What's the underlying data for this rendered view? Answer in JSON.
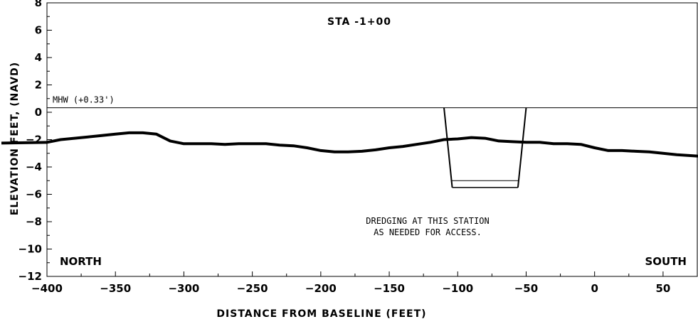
{
  "chart_data": {
    "type": "line",
    "title": "STA -1+00",
    "xlabel": "DISTANCE FROM BASELINE (FEET)",
    "ylabel": "ELEVATION FEET, (NAVD)",
    "xlim": [
      -400,
      75
    ],
    "ylim": [
      -12,
      8
    ],
    "x_ticks": [
      -400,
      -350,
      -300,
      -250,
      -200,
      -150,
      -100,
      -50,
      0,
      50
    ],
    "x_tick_labels": [
      "-400",
      "-350",
      "-300",
      "-250",
      "-200",
      "-150",
      "-100",
      "-50",
      "0",
      "50"
    ],
    "y_ticks": [
      -12,
      -10,
      -8,
      -6,
      -4,
      -2,
      0,
      2,
      4,
      6,
      8
    ],
    "y_tick_labels": [
      "-12",
      "-10",
      "-8",
      "-6",
      "-4",
      "-2",
      "0",
      "2",
      "4",
      "6",
      "8"
    ],
    "grid": false,
    "mhw": {
      "label": "MHW (+0.33')",
      "value": 0.33
    },
    "series": [
      {
        "x": [
          -400,
          -390,
          -380,
          -370,
          -360,
          -350,
          -340,
          -330,
          -320,
          -310,
          -300,
          -290,
          -280,
          -270,
          -260,
          -250,
          -240,
          -230,
          -220,
          -210,
          -200,
          -190,
          -180,
          -170,
          -160,
          -150,
          -140,
          -130,
          -120,
          -110,
          -100,
          -90,
          -80,
          -70,
          -60,
          -50,
          -40,
          -30,
          -20,
          -10,
          0,
          10,
          20,
          30,
          40,
          50,
          60,
          75
        ],
        "y": [
          -2.2,
          -2.0,
          -1.9,
          -1.8,
          -1.7,
          -1.6,
          -1.5,
          -1.5,
          -1.6,
          -2.1,
          -2.3,
          -2.3,
          -2.3,
          -2.35,
          -2.3,
          -2.3,
          -2.3,
          -2.4,
          -2.45,
          -2.6,
          -2.8,
          -2.9,
          -2.9,
          -2.85,
          -2.75,
          -2.6,
          -2.5,
          -2.35,
          -2.2,
          -2.0,
          -1.95,
          -1.85,
          -1.9,
          -2.1,
          -2.15,
          -2.2,
          -2.2,
          -2.3,
          -2.3,
          -2.35,
          -2.6,
          -2.8,
          -2.8,
          -2.85,
          -2.9,
          -3.0,
          -3.1,
          -3.2
        ]
      }
    ],
    "dredge_template": {
      "top_elevation": 0.33,
      "top_x": [
        -110,
        -50
      ],
      "bottom_x": [
        -104,
        -56
      ],
      "bottom_elevation": -5.5,
      "inner_line_elevation": -5.0
    },
    "annotations": {
      "note_line1": "DREDGING AT THIS STATION",
      "note_line2": "AS NEEDED FOR ACCESS.",
      "left_label": "NORTH",
      "right_label": "SOUTH"
    }
  }
}
